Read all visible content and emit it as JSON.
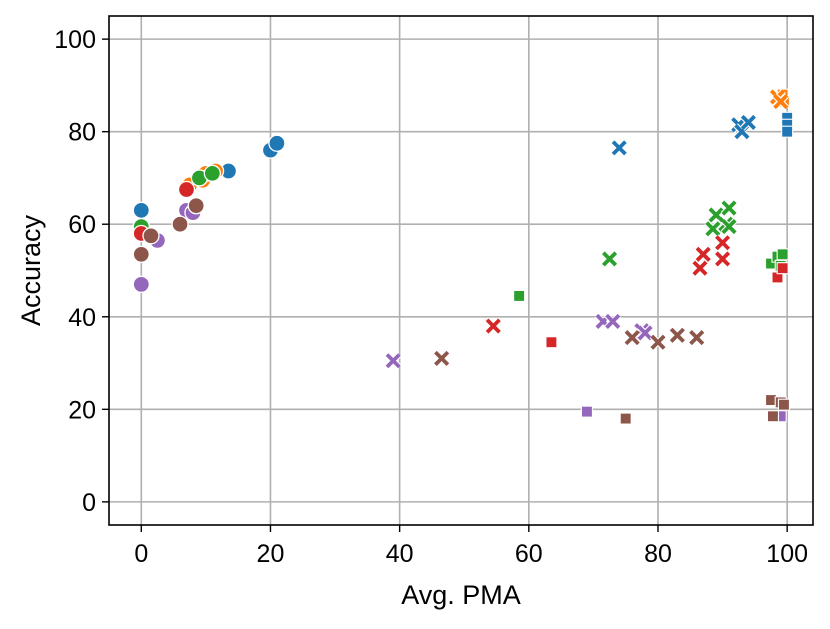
{
  "chart_data": {
    "type": "scatter",
    "title": "",
    "xlabel": "Avg. PMA",
    "ylabel": "Accuracy",
    "xlim": [
      -5,
      104
    ],
    "ylim": [
      -5,
      105
    ],
    "xticks": [
      0,
      20,
      40,
      60,
      80,
      100
    ],
    "yticks": [
      0,
      20,
      40,
      60,
      80,
      100
    ],
    "grid": true,
    "legend": "none",
    "series": [
      {
        "name": "blue",
        "color": "#1f77b4",
        "points": [
          {
            "x": 0,
            "y": 63,
            "m": "circle"
          },
          {
            "x": 13.5,
            "y": 71.5,
            "m": "circle"
          },
          {
            "x": 20,
            "y": 76,
            "m": "circle"
          },
          {
            "x": 21,
            "y": 77.5,
            "m": "circle"
          },
          {
            "x": 74,
            "y": 76.5,
            "m": "x"
          },
          {
            "x": 92.5,
            "y": 81.5,
            "m": "x"
          },
          {
            "x": 93,
            "y": 80,
            "m": "x"
          },
          {
            "x": 94,
            "y": 82,
            "m": "x"
          },
          {
            "x": 100,
            "y": 83,
            "m": "square"
          },
          {
            "x": 100,
            "y": 81.5,
            "m": "square"
          },
          {
            "x": 100,
            "y": 80,
            "m": "square"
          }
        ]
      },
      {
        "name": "orange",
        "color": "#ff7f0e",
        "points": [
          {
            "x": 7,
            "y": 68,
            "m": "circle"
          },
          {
            "x": 7.5,
            "y": 68.5,
            "m": "circle"
          },
          {
            "x": 9.5,
            "y": 69.5,
            "m": "circle"
          },
          {
            "x": 10,
            "y": 71,
            "m": "circle"
          },
          {
            "x": 11.5,
            "y": 71.5,
            "m": "circle"
          },
          {
            "x": 98.5,
            "y": 87.5,
            "m": "x"
          },
          {
            "x": 99,
            "y": 86.5,
            "m": "x"
          },
          {
            "x": 99.3,
            "y": 88,
            "m": "square"
          },
          {
            "x": 99.5,
            "y": 86.5,
            "m": "square"
          }
        ]
      },
      {
        "name": "green",
        "color": "#2ca02c",
        "points": [
          {
            "x": 0,
            "y": 59.5,
            "m": "circle"
          },
          {
            "x": 9,
            "y": 70,
            "m": "circle"
          },
          {
            "x": 11,
            "y": 71,
            "m": "circle"
          },
          {
            "x": 72.5,
            "y": 52.5,
            "m": "x"
          },
          {
            "x": 88.5,
            "y": 59,
            "m": "x"
          },
          {
            "x": 89,
            "y": 62,
            "m": "x"
          },
          {
            "x": 90.5,
            "y": 60,
            "m": "x"
          },
          {
            "x": 91,
            "y": 63.5,
            "m": "x"
          },
          {
            "x": 91,
            "y": 59.5,
            "m": "x"
          },
          {
            "x": 58.5,
            "y": 44.5,
            "m": "square"
          },
          {
            "x": 97.5,
            "y": 51.5,
            "m": "square"
          },
          {
            "x": 98.5,
            "y": 53,
            "m": "square"
          },
          {
            "x": 99,
            "y": 51,
            "m": "square"
          },
          {
            "x": 99.3,
            "y": 53.5,
            "m": "square"
          }
        ]
      },
      {
        "name": "red",
        "color": "#d62728",
        "points": [
          {
            "x": 0,
            "y": 58,
            "m": "circle"
          },
          {
            "x": 7,
            "y": 67.5,
            "m": "circle"
          },
          {
            "x": 54.5,
            "y": 38,
            "m": "x"
          },
          {
            "x": 86.5,
            "y": 50.5,
            "m": "x"
          },
          {
            "x": 87,
            "y": 53.5,
            "m": "x"
          },
          {
            "x": 90,
            "y": 52.5,
            "m": "x"
          },
          {
            "x": 90,
            "y": 56,
            "m": "x"
          },
          {
            "x": 63.5,
            "y": 34.5,
            "m": "square"
          },
          {
            "x": 98.5,
            "y": 48.5,
            "m": "square"
          },
          {
            "x": 99.3,
            "y": 50.5,
            "m": "square"
          }
        ]
      },
      {
        "name": "purple",
        "color": "#9467bd",
        "points": [
          {
            "x": 0,
            "y": 47,
            "m": "circle"
          },
          {
            "x": 2.5,
            "y": 56.5,
            "m": "circle"
          },
          {
            "x": 7,
            "y": 63,
            "m": "circle"
          },
          {
            "x": 8,
            "y": 62.5,
            "m": "circle"
          },
          {
            "x": 39,
            "y": 30.5,
            "m": "x"
          },
          {
            "x": 71.5,
            "y": 39,
            "m": "x"
          },
          {
            "x": 73,
            "y": 39,
            "m": "x"
          },
          {
            "x": 77.5,
            "y": 37,
            "m": "x"
          },
          {
            "x": 78,
            "y": 36.5,
            "m": "x"
          },
          {
            "x": 69,
            "y": 19.5,
            "m": "square"
          },
          {
            "x": 99,
            "y": 18.5,
            "m": "square"
          }
        ]
      },
      {
        "name": "brown",
        "color": "#8c564b",
        "points": [
          {
            "x": 0,
            "y": 53.5,
            "m": "circle"
          },
          {
            "x": 1.5,
            "y": 57.5,
            "m": "circle"
          },
          {
            "x": 6,
            "y": 60,
            "m": "circle"
          },
          {
            "x": 8.5,
            "y": 64,
            "m": "circle"
          },
          {
            "x": 46.5,
            "y": 31,
            "m": "x"
          },
          {
            "x": 76,
            "y": 35.5,
            "m": "x"
          },
          {
            "x": 80,
            "y": 34.5,
            "m": "x"
          },
          {
            "x": 83,
            "y": 36,
            "m": "x"
          },
          {
            "x": 86,
            "y": 35.5,
            "m": "x"
          },
          {
            "x": 75,
            "y": 18,
            "m": "square"
          },
          {
            "x": 97.5,
            "y": 22,
            "m": "square"
          },
          {
            "x": 97.8,
            "y": 18.5,
            "m": "square"
          },
          {
            "x": 99,
            "y": 21.5,
            "m": "square"
          },
          {
            "x": 99.5,
            "y": 21,
            "m": "square"
          }
        ]
      }
    ]
  }
}
